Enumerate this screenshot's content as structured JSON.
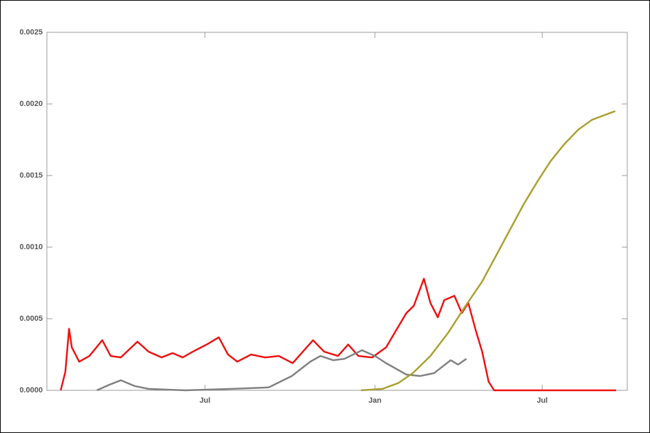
{
  "chart_data": {
    "type": "line",
    "xlim": [
      0,
      628
    ],
    "xticks": [
      {
        "value": 171,
        "label": "Jul"
      },
      {
        "value": 355,
        "label": "Jan"
      },
      {
        "value": 536,
        "label": "Jul"
      }
    ],
    "ylim": [
      0,
      0.0025
    ],
    "yticks": [
      {
        "value": 0,
        "label": "0.0000"
      },
      {
        "value": 0.0005,
        "label": "0.0005"
      },
      {
        "value": 0.001,
        "label": "0.0010"
      },
      {
        "value": 0.0015,
        "label": "0.0015"
      },
      {
        "value": 0.002,
        "label": "0.0020"
      },
      {
        "value": 0.0025,
        "label": "0.0025"
      }
    ],
    "series": [
      {
        "color": "#ee1111",
        "x": [
          15,
          20,
          24,
          27,
          35,
          46,
          60,
          69,
          80,
          98,
          110,
          124,
          136,
          147,
          158,
          173,
          186,
          196,
          206,
          221,
          236,
          251,
          266,
          277,
          288,
          300,
          315,
          326,
          337,
          352,
          367,
          378,
          389,
          397,
          408,
          415,
          423,
          430,
          441,
          449,
          456,
          464,
          471,
          478,
          484,
          616
        ],
        "values": [
          0,
          0.00013,
          0.00043,
          0.0003,
          0.0002,
          0.00024,
          0.00035,
          0.00024,
          0.00023,
          0.00034,
          0.00027,
          0.00023,
          0.00026,
          0.00023,
          0.00027,
          0.00032,
          0.00037,
          0.00025,
          0.0002,
          0.00025,
          0.00023,
          0.00024,
          0.00019,
          0.00027,
          0.00035,
          0.00027,
          0.00024,
          0.00032,
          0.00024,
          0.00023,
          0.0003,
          0.00042,
          0.00054,
          0.00059,
          0.00078,
          0.00061,
          0.00051,
          0.00063,
          0.00066,
          0.00054,
          0.00061,
          0.00042,
          0.00027,
          6e-05,
          0,
          0
        ]
      },
      {
        "color": "#808080",
        "x": [
          54,
          68,
          80,
          95,
          110,
          150,
          200,
          240,
          265,
          285,
          296,
          310,
          322,
          341,
          355,
          367,
          389,
          404,
          419,
          437,
          445,
          454
        ],
        "values": [
          0,
          4e-05,
          7e-05,
          3e-05,
          1e-05,
          0,
          1e-05,
          2e-05,
          0.0001,
          0.0002,
          0.00024,
          0.00021,
          0.00022,
          0.00028,
          0.00024,
          0.00019,
          0.00011,
          0.0001,
          0.00012,
          0.00021,
          0.00018,
          0.00022
        ]
      },
      {
        "color": "#a8a030",
        "x": [
          340,
          363,
          380,
          396,
          415,
          434,
          452,
          471,
          486,
          501,
          516,
          531,
          545,
          560,
          575,
          590,
          615
        ],
        "values": [
          0,
          1e-05,
          5e-05,
          0.00012,
          0.00024,
          0.0004,
          0.00058,
          0.00076,
          0.00094,
          0.00112,
          0.0013,
          0.00146,
          0.0016,
          0.00172,
          0.00182,
          0.00189,
          0.00195
        ]
      }
    ]
  }
}
